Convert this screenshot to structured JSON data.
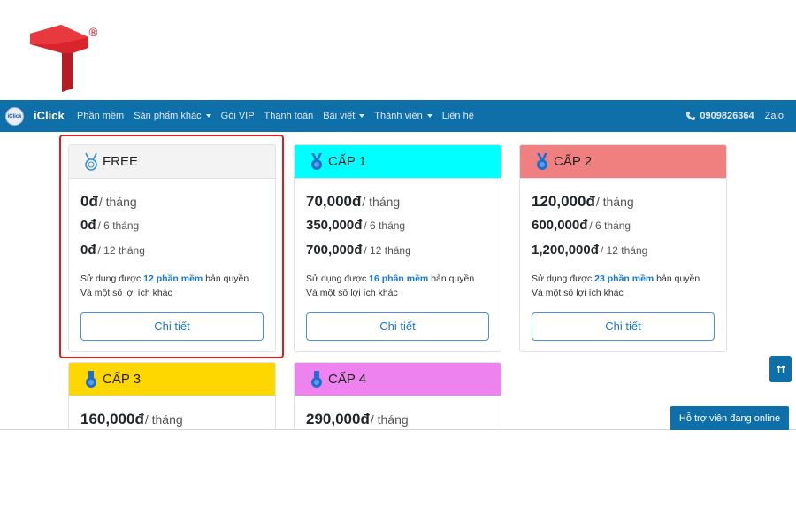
{
  "logo": {
    "reg_mark": "®",
    "color": "#d9232d"
  },
  "navbar": {
    "brand_icon_text": "iClick",
    "brand": "iClick",
    "items": [
      {
        "label": "Phần mềm",
        "dropdown": false
      },
      {
        "label": "Sản phẩm khác",
        "dropdown": true
      },
      {
        "label": "Gói VIP",
        "dropdown": false
      },
      {
        "label": "Thanh toán",
        "dropdown": false
      },
      {
        "label": "Bài viết",
        "dropdown": true
      },
      {
        "label": "Thành viên",
        "dropdown": true
      },
      {
        "label": "Liên hệ",
        "dropdown": false
      }
    ],
    "phone_icon": "phone-icon",
    "phone": "0909826364",
    "zalo": "Zalo",
    "color": "#0f6fa8"
  },
  "plans": [
    {
      "name": "FREE",
      "header_color": "#f3f3f3",
      "medal_color": "#3a8fd9",
      "monthly": "0đ",
      "monthly_unit": "/ tháng",
      "six": "0đ",
      "six_unit": "/ 6 tháng",
      "twelve": "0đ",
      "twelve_unit": "/ 12 tháng",
      "desc_prefix": "Sử dụng được ",
      "desc_highlight": "12 phần mềm",
      "desc_suffix": " bản quyền",
      "desc_line2": "Và một số lợi ích khác",
      "button": "Chi tiết"
    },
    {
      "name": "CẤP 1",
      "header_color": "#00ffff",
      "medal_color": "#1e6fd0",
      "monthly": "70,000đ",
      "monthly_unit": "/ tháng",
      "six": "350,000đ",
      "six_unit": "/ 6 tháng",
      "twelve": "700,000đ",
      "twelve_unit": "/ 12 tháng",
      "desc_prefix": "Sử dụng được ",
      "desc_highlight": "16 phần mềm",
      "desc_suffix": " bản quyền",
      "desc_line2": "Và một số lợi ích khác",
      "button": "Chi tiết"
    },
    {
      "name": "CẤP 2",
      "header_color": "#f08080",
      "medal_color": "#1e6fd0",
      "monthly": "120,000đ",
      "monthly_unit": "/ tháng",
      "six": "600,000đ",
      "six_unit": "/ 6 tháng",
      "twelve": "1,200,000đ",
      "twelve_unit": "/ 12 tháng",
      "desc_prefix": "Sử dụng được ",
      "desc_highlight": "23 phần mềm",
      "desc_suffix": " bản quyền",
      "desc_line2": "Và một số lợi ích khác",
      "button": "Chi tiết"
    },
    {
      "name": "CẤP 3",
      "header_color": "#ffd700",
      "medal_color": "#1e6fd0",
      "monthly": "160,000đ",
      "monthly_unit": "/ tháng"
    },
    {
      "name": "CẤP 4",
      "header_color": "#ee82ee",
      "medal_color": "#1e6fd0",
      "monthly": "290,000đ",
      "monthly_unit": "/ tháng"
    }
  ],
  "floating": {
    "scroll_top_icon": "double-arrow-up-icon",
    "support_label": "Hỗ trợ viên đang online"
  }
}
